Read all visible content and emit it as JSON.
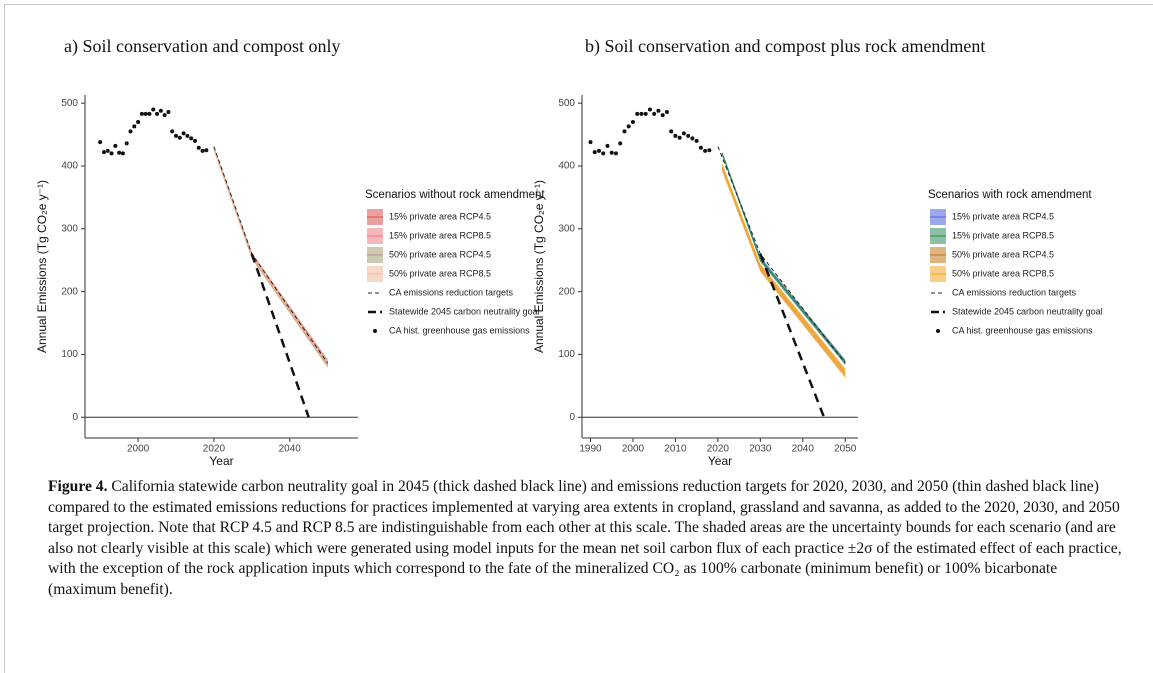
{
  "chart_data": [
    {
      "type": "line",
      "title": "a) Soil conservation and compost only",
      "xlabel": "Year",
      "ylabel": "Annual Emissions (Tg CO₂e y⁻¹)",
      "xlim": [
        1986,
        2058
      ],
      "ylim": [
        -33,
        513
      ],
      "xticks": [
        2000,
        2020,
        2040
      ],
      "yticks": [
        0,
        100,
        200,
        300,
        400,
        500
      ],
      "hline": 0,
      "legend_title": "Scenarios without rock amendment",
      "series": [
        {
          "name": "15% private area RCP4.5",
          "color": "#d9534f",
          "style": "band",
          "x": [
            2020,
            2030,
            2050
          ],
          "values": [
            428,
            258,
            86
          ],
          "lower": [
            425,
            253,
            80
          ],
          "upper": [
            431,
            262,
            92
          ]
        },
        {
          "name": "15% private area RCP8.5",
          "color": "#f07a84",
          "style": "band",
          "x": [
            2020,
            2030,
            2050
          ],
          "values": [
            428,
            258,
            86
          ],
          "lower": [
            425,
            253,
            80
          ],
          "upper": [
            431,
            262,
            92
          ]
        },
        {
          "name": "50% private area RCP4.5",
          "color": "#a89a78",
          "style": "band",
          "x": [
            2020,
            2030,
            2050
          ],
          "values": [
            427,
            257,
            85
          ],
          "lower": [
            424,
            252,
            79
          ],
          "upper": [
            430,
            261,
            91
          ]
        },
        {
          "name": "50% private area RCP8.5",
          "color": "#f2b89a",
          "style": "band",
          "x": [
            2020,
            2030,
            2050
          ],
          "values": [
            427,
            257,
            85
          ],
          "lower": [
            424,
            252,
            79
          ],
          "upper": [
            430,
            261,
            91
          ]
        },
        {
          "name": "CA emissions reduction targets",
          "color": "#222222",
          "style": "dashed",
          "x": [
            2020,
            2030,
            2050
          ],
          "values": [
            431,
            260,
            86
          ]
        },
        {
          "name": "Statewide 2045 carbon neutrality goal",
          "color": "#111111",
          "style": "thick-dashed",
          "x": [
            2030,
            2045
          ],
          "values": [
            260,
            0
          ]
        },
        {
          "name": "CA hist. greenhouse gas emissions",
          "color": "#111111",
          "style": "points",
          "x": [
            1990,
            1991,
            1992,
            1993,
            1994,
            1995,
            1996,
            1997,
            1998,
            1999,
            2000,
            2001,
            2002,
            2003,
            2004,
            2005,
            2006,
            2007,
            2008,
            2009,
            2010,
            2011,
            2012,
            2013,
            2014,
            2015,
            2016,
            2017,
            2018
          ],
          "values": [
            438,
            422,
            424,
            420,
            432,
            421,
            420,
            436,
            455,
            463,
            470,
            483,
            483,
            483,
            490,
            483,
            488,
            481,
            486,
            455,
            448,
            445,
            452,
            448,
            444,
            440,
            429,
            424,
            425
          ]
        }
      ]
    },
    {
      "type": "line",
      "title": "b) Soil conservation and compost plus rock amendment",
      "xlabel": "Year",
      "ylabel": "Annual Emissions (Tg CO₂e y⁻¹)",
      "xlim": [
        1988,
        2053
      ],
      "ylim": [
        -33,
        513
      ],
      "xticks": [
        1990,
        2000,
        2010,
        2020,
        2030,
        2040,
        2050
      ],
      "yticks": [
        0,
        100,
        200,
        300,
        400,
        500
      ],
      "hline": 0,
      "legend_title": "Scenarios with rock amendment",
      "series": [
        {
          "name": "15% private area RCP4.5",
          "color": "#4a63d8",
          "style": "band",
          "x": [
            2021,
            2030,
            2050
          ],
          "values": [
            420,
            252,
            88
          ],
          "lower": [
            417,
            248,
            84
          ],
          "upper": [
            423,
            256,
            92
          ]
        },
        {
          "name": "15% private area RCP8.5",
          "color": "#2e8b57",
          "style": "band",
          "x": [
            2021,
            2030,
            2050
          ],
          "values": [
            420,
            251,
            87
          ],
          "lower": [
            417,
            247,
            83
          ],
          "upper": [
            423,
            255,
            91
          ]
        },
        {
          "name": "50% private area RCP4.5",
          "color": "#c4761c",
          "style": "band",
          "x": [
            2021,
            2030,
            2050
          ],
          "values": [
            398,
            238,
            70
          ],
          "lower": [
            392,
            232,
            63
          ],
          "upper": [
            404,
            244,
            77
          ]
        },
        {
          "name": "50% private area RCP8.5",
          "color": "#f5a623",
          "style": "band",
          "x": [
            2021,
            2030,
            2050
          ],
          "values": [
            398,
            238,
            70
          ],
          "lower": [
            392,
            232,
            63
          ],
          "upper": [
            404,
            244,
            77
          ]
        },
        {
          "name": "CA emissions reduction targets",
          "color": "#222222",
          "style": "dashed",
          "x": [
            2020,
            2030,
            2050
          ],
          "values": [
            431,
            260,
            86
          ]
        },
        {
          "name": "Statewide 2045 carbon neutrality goal",
          "color": "#111111",
          "style": "thick-dashed",
          "x": [
            2030,
            2045
          ],
          "values": [
            260,
            0
          ]
        },
        {
          "name": "CA hist. greenhouse gas emissions",
          "color": "#111111",
          "style": "points",
          "x": [
            1990,
            1991,
            1992,
            1993,
            1994,
            1995,
            1996,
            1997,
            1998,
            1999,
            2000,
            2001,
            2002,
            2003,
            2004,
            2005,
            2006,
            2007,
            2008,
            2009,
            2010,
            2011,
            2012,
            2013,
            2014,
            2015,
            2016,
            2017,
            2018
          ],
          "values": [
            438,
            422,
            424,
            420,
            432,
            421,
            420,
            436,
            455,
            463,
            470,
            483,
            483,
            483,
            490,
            483,
            488,
            481,
            486,
            455,
            448,
            445,
            452,
            448,
            444,
            440,
            429,
            424,
            425
          ]
        }
      ]
    }
  ],
  "caption": {
    "label": "Figure 4.",
    "text": "California statewide carbon neutrality goal in 2045 (thick dashed black line) and emissions reduction targets for 2020, 2030, and 2050 (thin dashed black line) compared to the estimated emissions reductions for practices implemented at varying area extents in cropland, grassland and savanna, as added to the 2020, 2030, and 2050 target projection. Note that RCP 4.5 and RCP 8.5 are indistinguishable from each other at this scale. The shaded areas are the uncertainty bounds for each scenario (and are also not clearly visible at this scale) which were generated using model inputs for the mean net soil carbon flux of each practice ±2σ of the estimated effect of each practice, with the exception of the rock application inputs which correspond to the fate of the mineralized CO₂ as 100% carbonate (minimum benefit) or 100% bicarbonate (maximum benefit)."
  }
}
